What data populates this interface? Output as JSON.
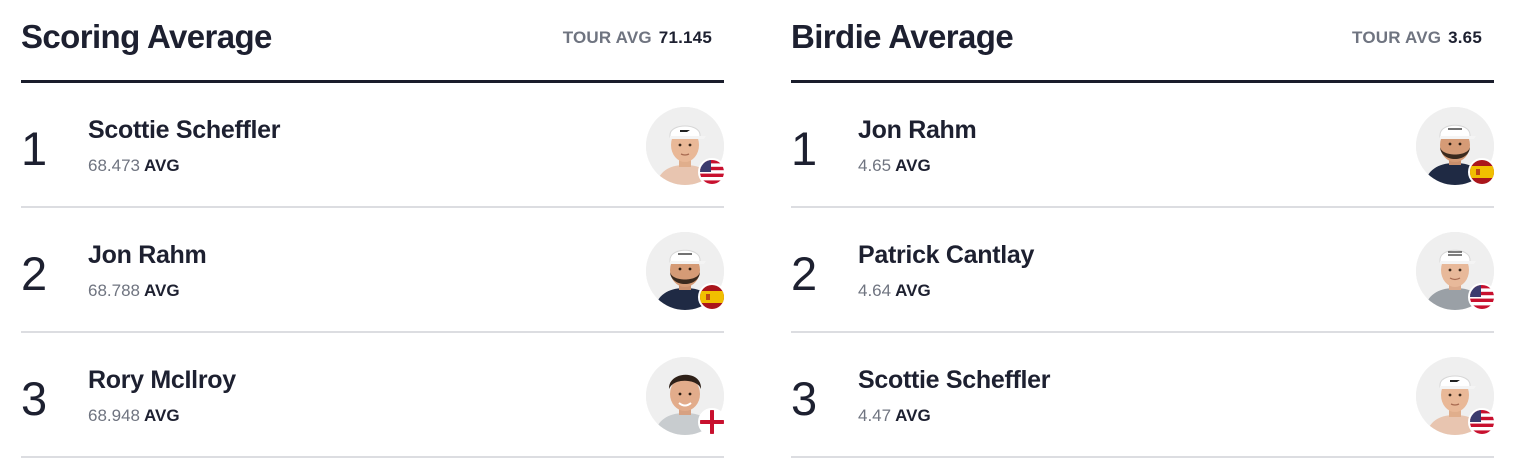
{
  "panels": [
    {
      "title": "Scoring Average",
      "tour_avg_label": "TOUR AVG",
      "tour_avg_value": "71.145",
      "rows": [
        {
          "rank": "1",
          "name": "Scottie Scheffler",
          "value": "68.473",
          "unit": "AVG",
          "flag": "usa-flag-icon",
          "cap": "white-cap",
          "hair": "#8a5a36",
          "beard": false,
          "shirt": "#e8c5b0"
        },
        {
          "rank": "2",
          "name": "Jon Rahm",
          "value": "68.788",
          "unit": "AVG",
          "flag": "spain-flag-icon",
          "cap": "white-cap",
          "hair": "#3a2a1e",
          "beard": true,
          "shirt": "#1f2a44"
        },
        {
          "rank": "3",
          "name": "Rory McIlroy",
          "value": "68.948",
          "unit": "AVG",
          "flag": "northern-ireland-flag-icon",
          "cap": "none",
          "hair": "#2e2018",
          "beard": false,
          "shirt": "#c8cccf"
        }
      ]
    },
    {
      "title": "Birdie Average",
      "tour_avg_label": "TOUR AVG",
      "tour_avg_value": "3.65",
      "rows": [
        {
          "rank": "1",
          "name": "Jon Rahm",
          "value": "4.65",
          "unit": "AVG",
          "flag": "spain-flag-icon",
          "cap": "white-cap",
          "hair": "#3a2a1e",
          "beard": true,
          "shirt": "#1f2a44"
        },
        {
          "rank": "2",
          "name": "Patrick Cantlay",
          "value": "4.64",
          "unit": "AVG",
          "flag": "usa-flag-icon",
          "cap": "white-cap",
          "hair": "#6b4a32",
          "beard": false,
          "shirt": "#9aa0a6"
        },
        {
          "rank": "3",
          "name": "Scottie Scheffler",
          "value": "4.47",
          "unit": "AVG",
          "flag": "usa-flag-icon",
          "cap": "white-cap",
          "hair": "#8a5a36",
          "beard": false,
          "shirt": "#e8c5b0"
        }
      ]
    }
  ],
  "colors": {
    "text_primary": "#1d2030",
    "text_secondary": "#6f7480",
    "divider": "#dcdde1",
    "header_rule": "#1a1d2b",
    "avatar_bg": "#efefef"
  }
}
